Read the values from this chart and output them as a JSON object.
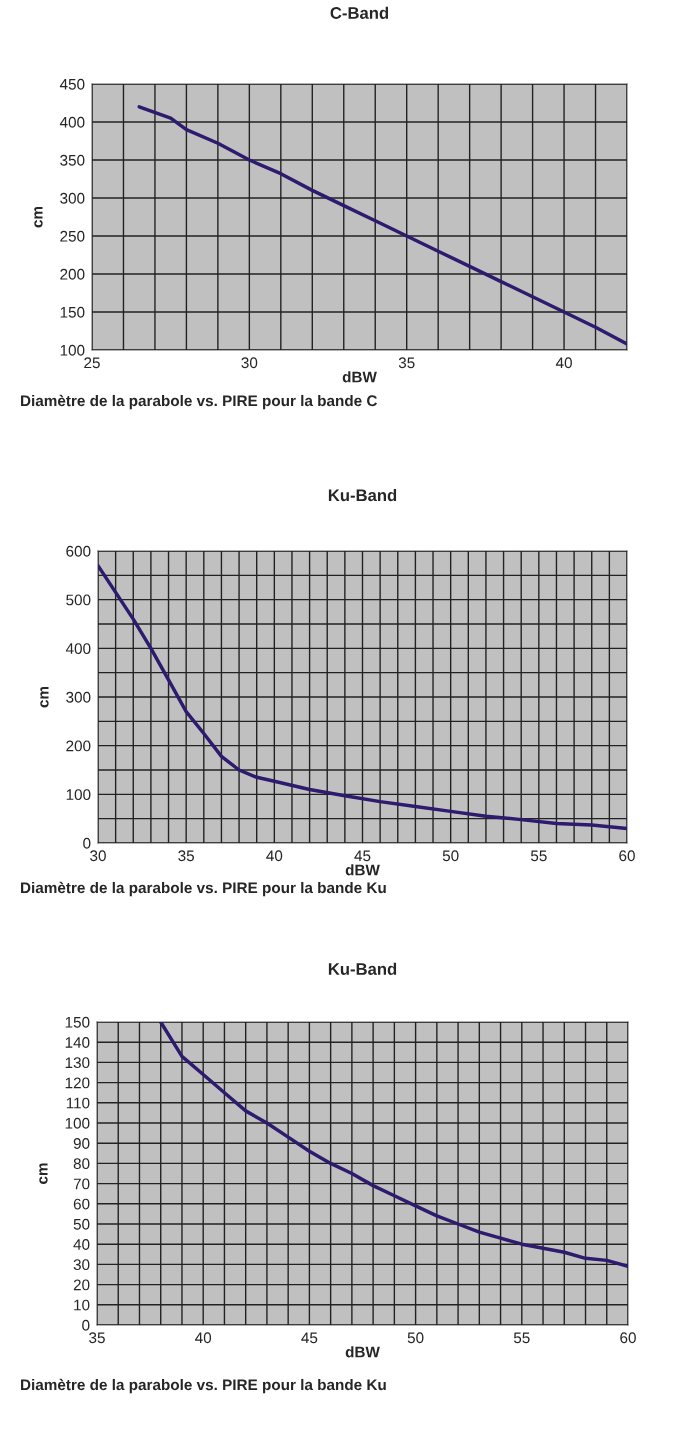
{
  "chart_data": [
    {
      "type": "line",
      "title": "C-Band",
      "xlabel": "dBW",
      "ylabel": "cm",
      "annotations": [
        "Diamètre de la parabole vs. PIRE pour la bande C"
      ],
      "x": [
        26.5,
        27.5,
        28,
        29,
        30,
        31,
        32,
        33,
        34,
        35,
        36,
        37,
        38,
        39,
        40,
        41,
        42
      ],
      "series": [
        {
          "color": "#2e1a6e",
          "values": [
            420,
            405,
            390,
            372,
            350,
            332,
            310,
            290,
            270,
            250,
            230,
            210,
            190,
            170,
            150,
            130,
            108
          ]
        }
      ],
      "xlim": [
        25,
        42
      ],
      "ylim": [
        100,
        450
      ],
      "xticks": [
        25,
        {
          "value": 26,
          "label": null
        },
        {
          "value": 27,
          "label": null
        },
        {
          "value": 28,
          "label": null
        },
        {
          "value": 29,
          "label": null
        },
        30,
        {
          "value": 31,
          "label": null
        },
        {
          "value": 32,
          "label": null
        },
        {
          "value": 33,
          "label": null
        },
        {
          "value": 34,
          "label": null
        },
        35,
        {
          "value": 36,
          "label": null
        },
        {
          "value": 37,
          "label": null
        },
        {
          "value": 38,
          "label": null
        },
        {
          "value": 39,
          "label": null
        },
        40,
        {
          "value": 41,
          "label": null
        },
        {
          "value": 42,
          "label": null
        }
      ],
      "yticks": [
        100,
        150,
        200,
        250,
        300,
        350,
        400,
        450
      ],
      "grid": true,
      "line_style": "solid",
      "marker": "none"
    },
    {
      "type": "line",
      "title": "Ku-Band",
      "xlabel": "dBW",
      "ylabel": "cm",
      "annotations": [
        "Diamètre de la parabole vs. PIRE pour la bande Ku"
      ],
      "x": [
        30,
        31,
        32,
        33,
        34,
        35,
        36,
        37,
        38,
        39,
        40,
        42,
        44,
        46,
        48,
        50,
        52,
        54,
        56,
        58,
        60
      ],
      "series": [
        {
          "color": "#2e1a6e",
          "values": [
            570,
            515,
            460,
            400,
            335,
            270,
            225,
            178,
            150,
            135,
            127,
            110,
            97,
            85,
            75,
            65,
            55,
            48,
            40,
            37,
            30
          ]
        }
      ],
      "xlim": [
        30,
        60
      ],
      "ylim": [
        0,
        600
      ],
      "xticks": [
        30,
        {
          "value": 31,
          "label": null
        },
        {
          "value": 32,
          "label": null
        },
        {
          "value": 33,
          "label": null
        },
        {
          "value": 34,
          "label": null
        },
        35,
        {
          "value": 36,
          "label": null
        },
        {
          "value": 37,
          "label": null
        },
        {
          "value": 38,
          "label": null
        },
        {
          "value": 39,
          "label": null
        },
        40,
        {
          "value": 41,
          "label": null
        },
        {
          "value": 42,
          "label": null
        },
        {
          "value": 43,
          "label": null
        },
        {
          "value": 44,
          "label": null
        },
        45,
        {
          "value": 46,
          "label": null
        },
        {
          "value": 47,
          "label": null
        },
        {
          "value": 48,
          "label": null
        },
        {
          "value": 49,
          "label": null
        },
        50,
        {
          "value": 51,
          "label": null
        },
        {
          "value": 52,
          "label": null
        },
        {
          "value": 53,
          "label": null
        },
        {
          "value": 54,
          "label": null
        },
        55,
        {
          "value": 56,
          "label": null
        },
        {
          "value": 57,
          "label": null
        },
        {
          "value": 58,
          "label": null
        },
        {
          "value": 59,
          "label": null
        },
        60
      ],
      "yticks": [
        0,
        {
          "value": 50,
          "label": null
        },
        100,
        {
          "value": 150,
          "label": null
        },
        200,
        {
          "value": 250,
          "label": null
        },
        300,
        {
          "value": 350,
          "label": null
        },
        400,
        {
          "value": 450,
          "label": null
        },
        500,
        {
          "value": 550,
          "label": null
        },
        600
      ],
      "grid": true,
      "line_style": "solid",
      "marker": "none"
    },
    {
      "type": "line",
      "title": "Ku-Band",
      "xlabel": "dBW",
      "ylabel": "cm",
      "annotations": [
        "Diamètre de la parabole vs. PIRE pour la bande Ku"
      ],
      "x": [
        38,
        39,
        40,
        41,
        42,
        43,
        44,
        45,
        46,
        47,
        48,
        49,
        50,
        51,
        52,
        53,
        54,
        55,
        56,
        57,
        58,
        59,
        60
      ],
      "series": [
        {
          "color": "#2e1a6e",
          "values": [
            150,
            133,
            124,
            115,
            106,
            100,
            93,
            86,
            80,
            75,
            69,
            64,
            59,
            54,
            50,
            46,
            43,
            40,
            38,
            36,
            33,
            32,
            29
          ]
        }
      ],
      "xlim": [
        35,
        60
      ],
      "ylim": [
        0,
        150
      ],
      "xticks": [
        35,
        {
          "value": 36,
          "label": null
        },
        {
          "value": 37,
          "label": null
        },
        {
          "value": 38,
          "label": null
        },
        {
          "value": 39,
          "label": null
        },
        40,
        {
          "value": 41,
          "label": null
        },
        {
          "value": 42,
          "label": null
        },
        {
          "value": 43,
          "label": null
        },
        {
          "value": 44,
          "label": null
        },
        45,
        {
          "value": 46,
          "label": null
        },
        {
          "value": 47,
          "label": null
        },
        {
          "value": 48,
          "label": null
        },
        {
          "value": 49,
          "label": null
        },
        50,
        {
          "value": 51,
          "label": null
        },
        {
          "value": 52,
          "label": null
        },
        {
          "value": 53,
          "label": null
        },
        {
          "value": 54,
          "label": null
        },
        55,
        {
          "value": 56,
          "label": null
        },
        {
          "value": 57,
          "label": null
        },
        {
          "value": 58,
          "label": null
        },
        {
          "value": 59,
          "label": null
        },
        60
      ],
      "yticks": [
        0,
        10,
        20,
        30,
        40,
        50,
        60,
        70,
        80,
        90,
        100,
        110,
        120,
        130,
        140,
        150
      ],
      "grid": true,
      "line_style": "solid",
      "marker": "none"
    }
  ]
}
